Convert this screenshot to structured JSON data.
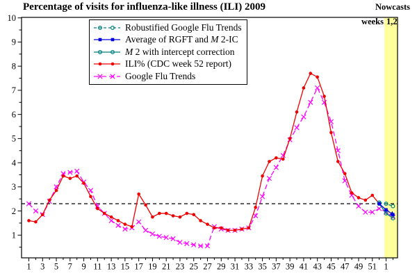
{
  "title": "Percentage of visits for influenza-like illness (ILI) 2009",
  "nowcast": {
    "line1": "Nowcasts",
    "line2": "weeks",
    "line3": "1,2"
  },
  "colors": {
    "ili": "#ee0000",
    "gft": "#ff00ff",
    "rgft": "#008080",
    "m2ic": "#008080",
    "avg": "#0000dd",
    "band": "#ffff9b",
    "threshold": "#000000",
    "frame": "#000000"
  },
  "chart_data": {
    "type": "line",
    "title": "Percentage of visits for influenza-like illness (ILI) 2009",
    "xlabel": "",
    "ylabel": "",
    "ylim": [
      0,
      10
    ],
    "xlim_weeks": [
      0,
      54.7
    ],
    "grid": false,
    "legend_position": "top-center-inside",
    "threshold_line": 2.3,
    "nowcast_band_weeks": [
      52.75,
      54.7
    ],
    "x_tick_labels": [
      "1",
      "3",
      "5",
      "7",
      "9",
      "11",
      "13",
      "15",
      "17",
      "19",
      "21",
      "23",
      "25",
      "27",
      "29",
      "31",
      "33",
      "35",
      "37",
      "39",
      "41",
      "43",
      "45",
      "47",
      "49",
      "51",
      "1"
    ],
    "y_tick_labels": [
      "1",
      "2",
      "3",
      "4",
      "5",
      "6",
      "7",
      "8",
      "9",
      "10"
    ],
    "draw_order": [
      4,
      3,
      0,
      2,
      1
    ],
    "series": [
      {
        "name": "Robustified Google Flu Trends",
        "label_parts": {
          "pre": "Robustified Google Flu Trends",
          "italic": "",
          "post": ""
        },
        "color_key": "rgft",
        "dash": "4 3",
        "marker": "open-circle",
        "arrow_end": false,
        "x": [
          52,
          53,
          54
        ],
        "values": [
          2.35,
          2.3,
          2.2
        ]
      },
      {
        "name": "Average of RGFT and M2-IC",
        "label_parts": {
          "pre": "Average of RGFT and ",
          "italic": "M",
          "post": " 2-IC"
        },
        "color_key": "avg",
        "dash": "",
        "marker": "filled-square",
        "arrow_end": true,
        "x": [
          52,
          53,
          54
        ],
        "values": [
          2.3,
          2.05,
          1.85
        ]
      },
      {
        "name": "M2 with intercept correction",
        "label_parts": {
          "pre": "",
          "italic": "M",
          "post": " 2 with intercept correction"
        },
        "color_key": "m2ic",
        "dash": "",
        "marker": "open-circle",
        "arrow_end": false,
        "x": [
          52,
          53,
          54
        ],
        "values": [
          2.3,
          1.9,
          1.7
        ]
      },
      {
        "name": "ILI% (CDC week 52 report)",
        "label_parts": {
          "pre": "ILI% (CDC week 52 report)",
          "italic": "",
          "post": ""
        },
        "color_key": "ili",
        "dash": "",
        "marker": "filled-circle",
        "arrow_end": false,
        "x_start": 1,
        "values": [
          1.6,
          1.55,
          1.85,
          2.45,
          2.85,
          3.45,
          3.35,
          3.45,
          3.15,
          2.6,
          2.1,
          1.9,
          1.75,
          1.6,
          1.45,
          1.35,
          2.7,
          2.25,
          1.75,
          1.9,
          1.9,
          1.8,
          1.75,
          1.9,
          1.85,
          1.6,
          1.45,
          1.3,
          1.3,
          1.2,
          1.2,
          1.25,
          1.3,
          2.15,
          3.45,
          4.05,
          4.2,
          4.15,
          5.0,
          6.1,
          7.1,
          7.7,
          7.55,
          6.75,
          5.25,
          4.05,
          3.55,
          2.75,
          2.55,
          2.45,
          2.65,
          2.3
        ]
      },
      {
        "name": "Google Flu Trends",
        "label_parts": {
          "pre": "Google Flu Trends",
          "italic": "",
          "post": ""
        },
        "color_key": "gft",
        "dash": "7 4",
        "marker": "x-cross",
        "arrow_end": false,
        "x_start": 1,
        "values": [
          2.3,
          2.0,
          1.85,
          2.4,
          3.0,
          3.55,
          3.6,
          3.65,
          3.2,
          2.85,
          2.2,
          1.9,
          1.6,
          1.4,
          1.25,
          1.3,
          1.55,
          1.2,
          1.05,
          0.95,
          0.9,
          0.85,
          0.7,
          0.65,
          0.6,
          0.55,
          0.55,
          1.35,
          1.25,
          1.2,
          1.2,
          1.25,
          1.3,
          1.8,
          2.6,
          3.35,
          3.8,
          4.3,
          4.95,
          5.45,
          5.9,
          6.5,
          7.1,
          6.5,
          5.7,
          4.5,
          3.25,
          2.65,
          2.2,
          1.95,
          1.95,
          2.1,
          1.95,
          1.75
        ]
      }
    ]
  }
}
